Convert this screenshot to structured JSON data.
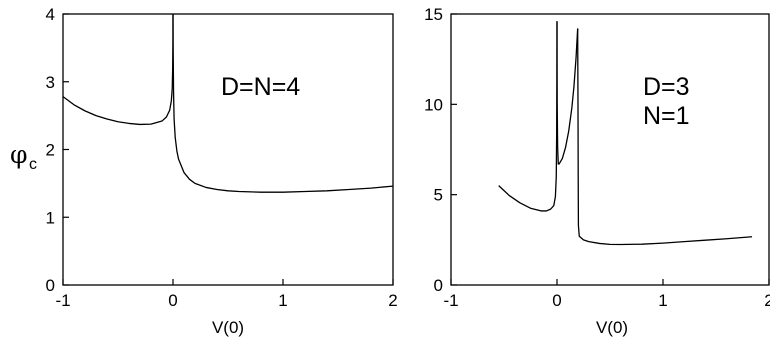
{
  "chart_data": [
    {
      "type": "line",
      "title": "",
      "xlabel": "V(0)",
      "ylabel_main": "φ",
      "ylabel_sub": "c",
      "xlim": [
        -1,
        2
      ],
      "ylim": [
        0,
        4
      ],
      "xticks": [
        "-1",
        "0",
        "1",
        "2"
      ],
      "yticks": [
        "0",
        "1",
        "2",
        "3",
        "4"
      ],
      "annotations": [
        "D=N=4"
      ],
      "grid": false,
      "series": [
        {
          "segments": [
            [
              [
                -1.0,
                2.78
              ],
              [
                -0.9,
                2.66
              ],
              [
                -0.8,
                2.57
              ],
              [
                -0.7,
                2.5
              ],
              [
                -0.6,
                2.45
              ],
              [
                -0.5,
                2.41
              ],
              [
                -0.4,
                2.385
              ],
              [
                -0.3,
                2.37
              ],
              [
                -0.2,
                2.375
              ],
              [
                -0.1,
                2.42
              ],
              [
                -0.06,
                2.48
              ],
              [
                -0.03,
                2.58
              ],
              [
                -0.015,
                2.72
              ],
              [
                -0.007,
                2.9
              ],
              [
                -0.003,
                3.2
              ],
              [
                -0.001,
                3.6
              ],
              [
                0.0,
                4.0
              ]
            ],
            [
              [
                0.0,
                4.0
              ],
              [
                0.002,
                3.4
              ],
              [
                0.005,
                2.85
              ],
              [
                0.01,
                2.45
              ],
              [
                0.02,
                2.18
              ],
              [
                0.035,
                1.98
              ],
              [
                0.05,
                1.86
              ],
              [
                0.1,
                1.66
              ],
              [
                0.15,
                1.56
              ],
              [
                0.2,
                1.5
              ],
              [
                0.3,
                1.44
              ],
              [
                0.4,
                1.41
              ],
              [
                0.5,
                1.39
              ],
              [
                0.6,
                1.38
              ],
              [
                0.8,
                1.37
              ],
              [
                1.0,
                1.37
              ],
              [
                1.2,
                1.38
              ],
              [
                1.4,
                1.39
              ],
              [
                1.6,
                1.41
              ],
              [
                1.8,
                1.43
              ],
              [
                2.0,
                1.46
              ]
            ]
          ]
        }
      ]
    },
    {
      "type": "line",
      "title": "",
      "xlabel": "V(0)",
      "xlim": [
        -1,
        2
      ],
      "ylim": [
        0,
        15
      ],
      "xticks": [
        "-1",
        "0",
        "1",
        "2"
      ],
      "yticks": [
        "0",
        "5",
        "10",
        "15"
      ],
      "annotations": [
        "D=3",
        "N=1"
      ],
      "grid": false,
      "series": [
        {
          "segments": [
            [
              [
                -0.55,
                5.5
              ],
              [
                -0.45,
                4.95
              ],
              [
                -0.35,
                4.55
              ],
              [
                -0.25,
                4.25
              ],
              [
                -0.15,
                4.1
              ],
              [
                -0.1,
                4.1
              ],
              [
                -0.06,
                4.2
              ],
              [
                -0.03,
                4.4
              ],
              [
                -0.015,
                4.9
              ],
              [
                -0.007,
                6.0
              ],
              [
                -0.003,
                8.5
              ],
              [
                0.0,
                14.6
              ]
            ],
            [
              [
                0.0,
                14.6
              ],
              [
                0.002,
                10.0
              ],
              [
                0.006,
                7.6
              ],
              [
                0.012,
                6.7
              ],
              [
                0.02,
                6.7
              ],
              [
                0.05,
                7.0
              ],
              [
                0.08,
                7.6
              ],
              [
                0.11,
                8.5
              ],
              [
                0.14,
                9.8
              ],
              [
                0.16,
                11.0
              ],
              [
                0.18,
                12.6
              ],
              [
                0.195,
                14.2
              ]
            ],
            [
              [
                0.195,
                14.2
              ],
              [
                0.198,
                10.0
              ],
              [
                0.2,
                6.0
              ],
              [
                0.202,
                3.3
              ],
              [
                0.21,
                2.7
              ],
              [
                0.25,
                2.5
              ],
              [
                0.3,
                2.4
              ],
              [
                0.4,
                2.3
              ],
              [
                0.5,
                2.25
              ],
              [
                0.6,
                2.24
              ],
              [
                0.8,
                2.26
              ],
              [
                1.0,
                2.32
              ],
              [
                1.2,
                2.4
              ],
              [
                1.4,
                2.48
              ],
              [
                1.6,
                2.56
              ],
              [
                1.84,
                2.67
              ]
            ]
          ]
        }
      ]
    }
  ]
}
